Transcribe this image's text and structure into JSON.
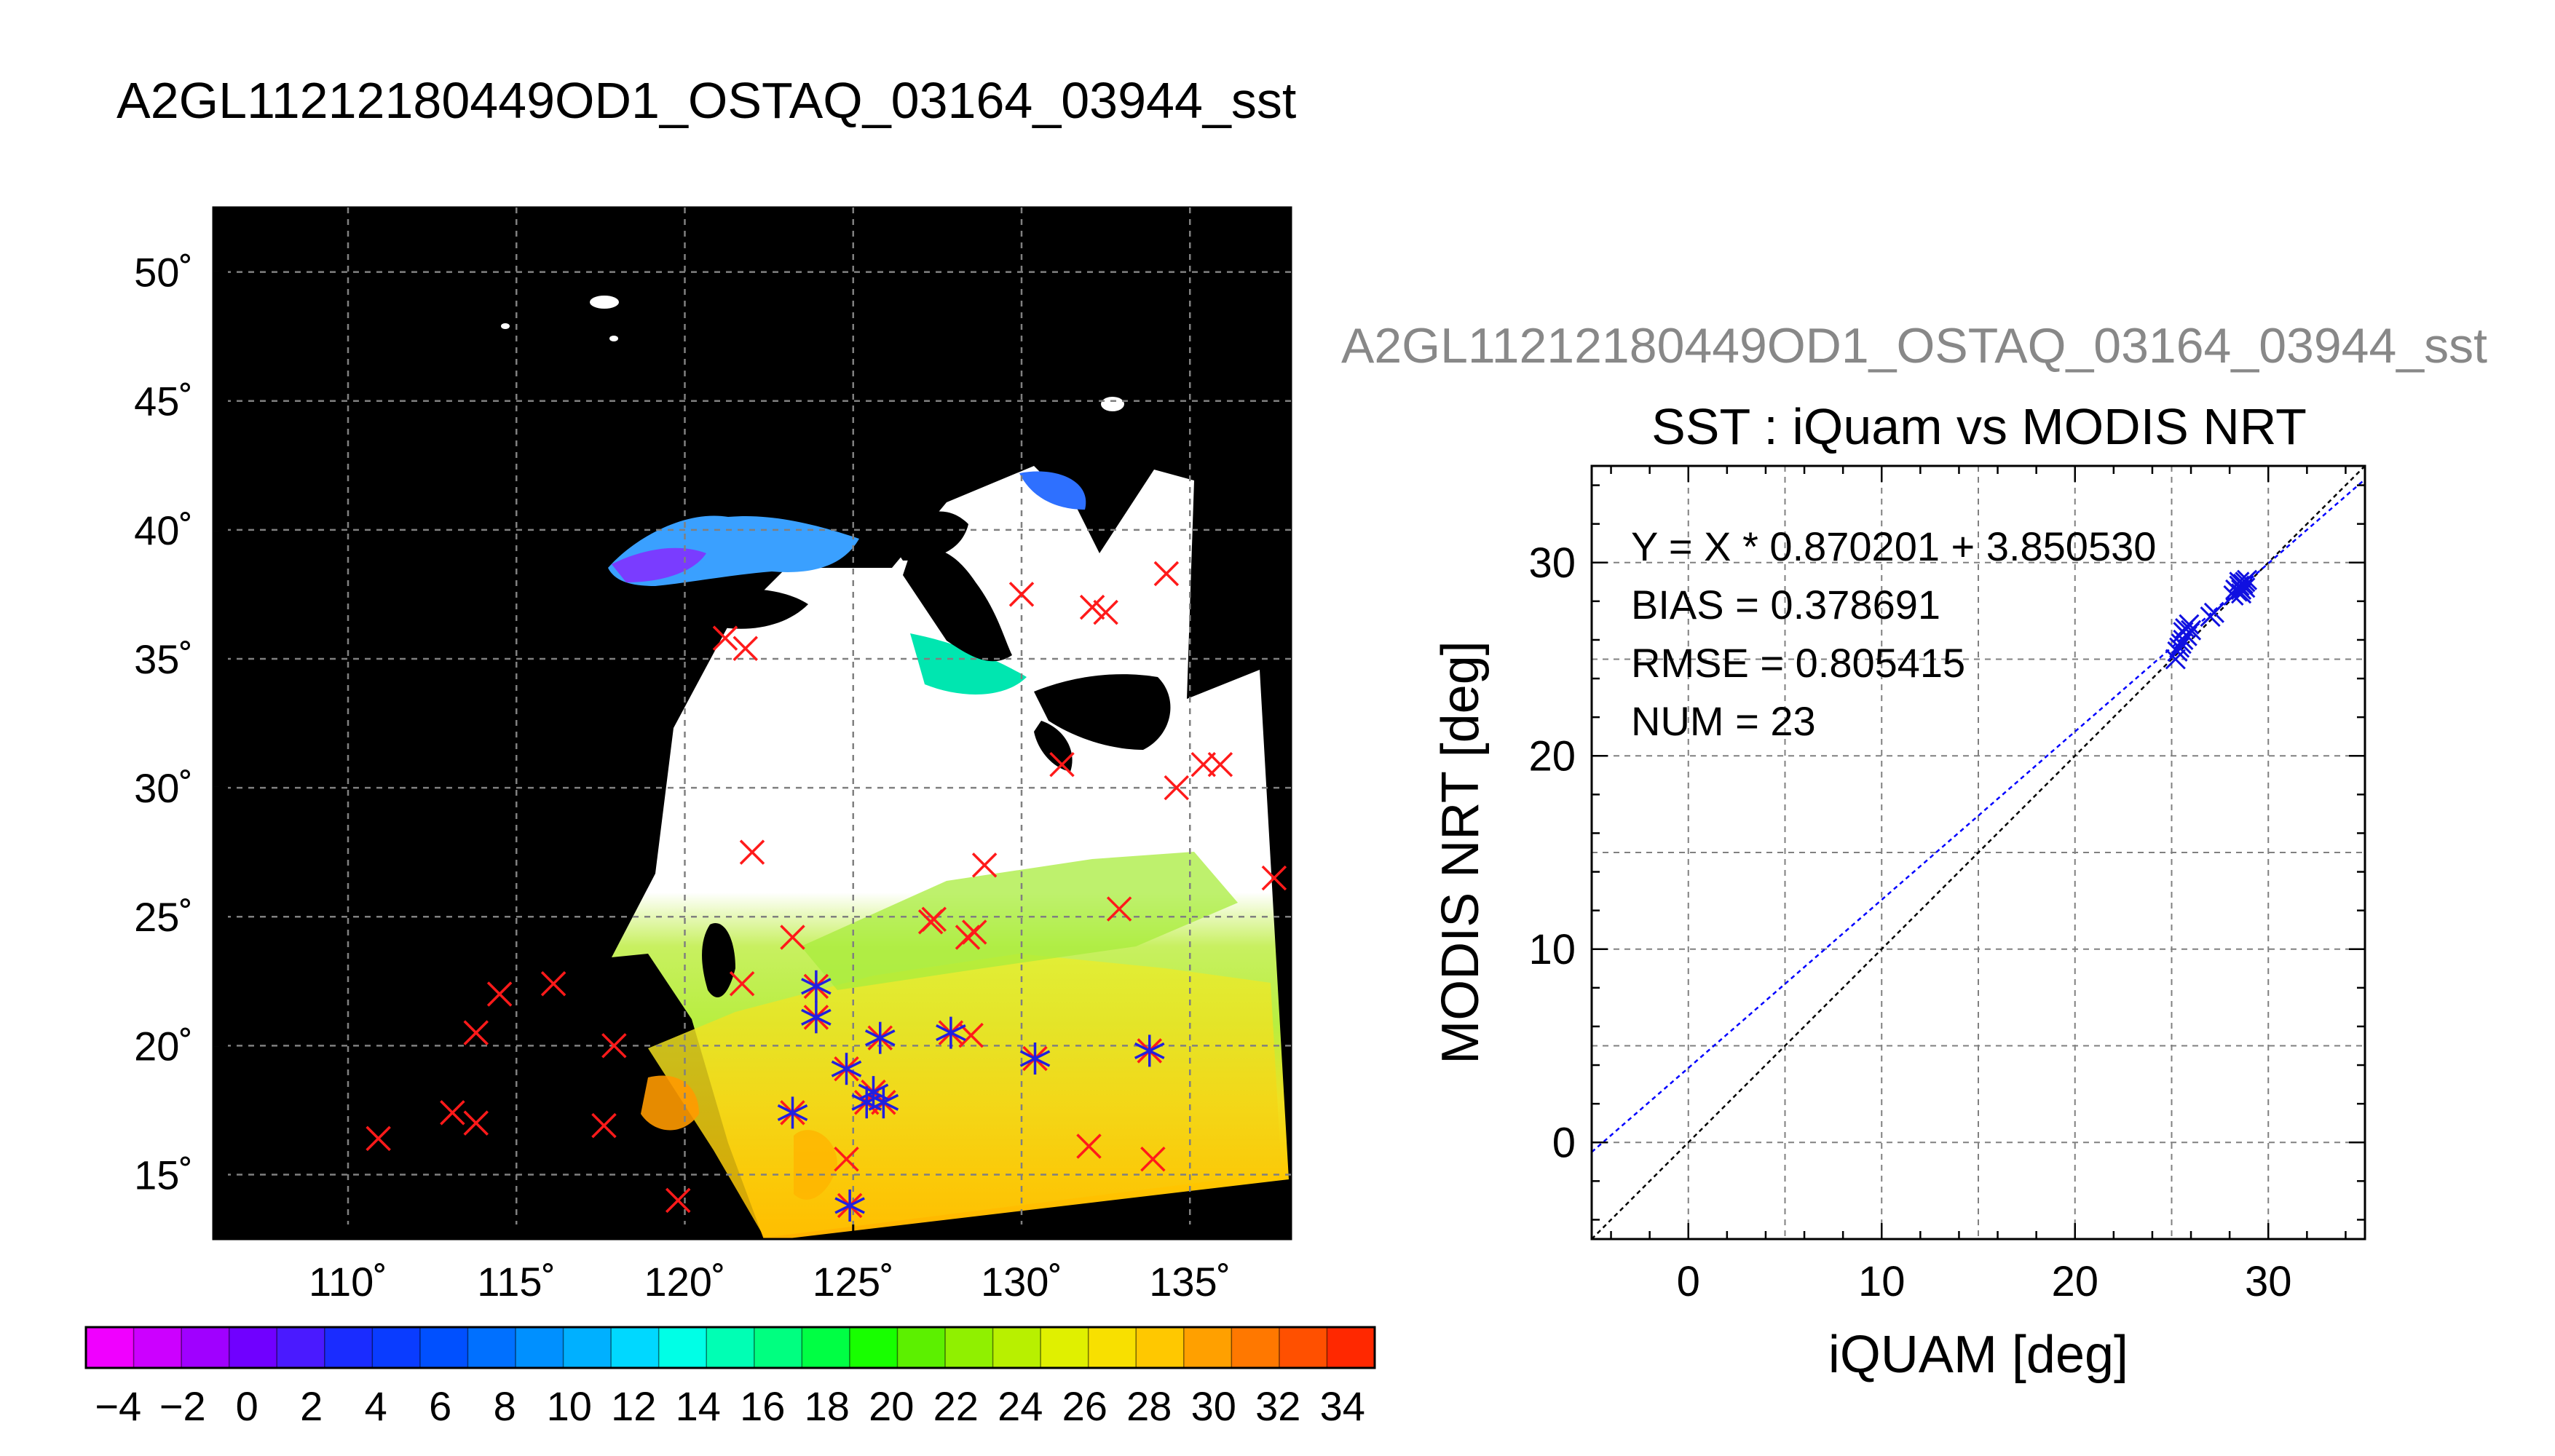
{
  "figure": {
    "main_title": "A2GL11212180449OD1_OSTAQ_03164_03944_sst",
    "scatter_supertitle": "A2GL11212180449OD1_OSTAQ_03164_03944_sst"
  },
  "map": {
    "lon_ticks": [
      "110˚",
      "115˚",
      "120˚",
      "125˚",
      "130˚",
      "135˚"
    ],
    "lat_ticks": [
      "50˚",
      "45˚",
      "40˚",
      "35˚",
      "30˚",
      "25˚",
      "20˚",
      "15˚"
    ],
    "lon_range": [
      106,
      138
    ],
    "lat_range": [
      12.5,
      52.5
    ],
    "matchup_points": [
      [
        134.3,
        38.3
      ],
      [
        132.1,
        37.0
      ],
      [
        132.5,
        36.8
      ],
      [
        130.0,
        37.5
      ],
      [
        121.2,
        35.8
      ],
      [
        121.8,
        35.4
      ],
      [
        131.2,
        30.9
      ],
      [
        134.6,
        30.0
      ],
      [
        135.4,
        30.9
      ],
      [
        135.9,
        30.9
      ],
      [
        122.0,
        27.5
      ],
      [
        137.5,
        26.5
      ],
      [
        128.9,
        27.0
      ],
      [
        127.3,
        24.8
      ],
      [
        127.4,
        24.9
      ],
      [
        128.4,
        24.2
      ],
      [
        128.6,
        24.4
      ],
      [
        123.2,
        24.2
      ],
      [
        132.9,
        25.3
      ],
      [
        116.1,
        22.4
      ],
      [
        114.5,
        22.0
      ],
      [
        121.7,
        22.4
      ],
      [
        123.9,
        22.3
      ],
      [
        123.9,
        21.1
      ],
      [
        113.8,
        20.5
      ],
      [
        117.9,
        20.0
      ],
      [
        125.8,
        20.3
      ],
      [
        127.9,
        20.5
      ],
      [
        128.5,
        20.4
      ],
      [
        124.8,
        19.1
      ],
      [
        130.4,
        19.5
      ],
      [
        133.8,
        19.8
      ],
      [
        125.6,
        18.2
      ],
      [
        125.4,
        17.8
      ],
      [
        125.9,
        17.8
      ],
      [
        123.2,
        17.4
      ],
      [
        113.1,
        17.4
      ],
      [
        113.8,
        17.0
      ],
      [
        117.6,
        16.9
      ],
      [
        110.9,
        16.4
      ],
      [
        132.0,
        16.1
      ],
      [
        124.8,
        15.6
      ],
      [
        133.9,
        15.6
      ],
      [
        119.8,
        14.0
      ],
      [
        124.9,
        13.8
      ]
    ],
    "insitu_points": [
      [
        123.9,
        22.3
      ],
      [
        123.9,
        21.1
      ],
      [
        125.8,
        20.3
      ],
      [
        127.9,
        20.5
      ],
      [
        124.8,
        19.1
      ],
      [
        130.4,
        19.5
      ],
      [
        133.8,
        19.8
      ],
      [
        125.6,
        18.2
      ],
      [
        125.4,
        17.8
      ],
      [
        125.9,
        17.8
      ],
      [
        123.2,
        17.4
      ],
      [
        124.9,
        13.8
      ]
    ]
  },
  "colorbar": {
    "tick_labels": [
      "−4",
      "−2",
      "0",
      "2",
      "4",
      "6",
      "8",
      "10",
      "12",
      "14",
      "16",
      "18",
      "20",
      "22",
      "24",
      "26",
      "28",
      "30",
      "32",
      "34"
    ],
    "range": [
      -5,
      35
    ],
    "colors": [
      "#f000ff",
      "#cc00ff",
      "#a000ff",
      "#7000ff",
      "#4a1aff",
      "#1a2cff",
      "#0a3cff",
      "#0050ff",
      "#0070ff",
      "#0090ff",
      "#00b0ff",
      "#00d8ff",
      "#00ffe6",
      "#00ffb4",
      "#00ff80",
      "#00ff44",
      "#18ff00",
      "#5cf000",
      "#90f000",
      "#b8f000",
      "#e0f000",
      "#f8e000",
      "#ffc800",
      "#ffa000",
      "#ff7800",
      "#ff5000",
      "#ff2800"
    ]
  },
  "chart_data": {
    "type": "scatter",
    "title": "SST : iQuam vs MODIS NRT",
    "xlabel": "iQUAM [deg]",
    "ylabel": "MODIS NRT [deg]",
    "xlim": [
      -5,
      35
    ],
    "ylim": [
      -5,
      35
    ],
    "x_ticks": [
      "0",
      "10",
      "20",
      "30"
    ],
    "y_ticks": [
      "0",
      "10",
      "20",
      "30"
    ],
    "grid": true,
    "stats": [
      "Y = X * 0.870201 + 3.850530",
      "BIAS = 0.378691",
      "RMSE = 0.805415",
      "NUM = 23"
    ],
    "fit": {
      "slope": 0.870201,
      "intercept": 3.85053
    },
    "points": [
      [
        25.2,
        25.0
      ],
      [
        25.3,
        25.4
      ],
      [
        25.4,
        25.6
      ],
      [
        25.5,
        25.8
      ],
      [
        25.6,
        26.0
      ],
      [
        25.6,
        26.4
      ],
      [
        25.7,
        26.6
      ],
      [
        25.8,
        26.2
      ],
      [
        25.9,
        26.8
      ],
      [
        26.0,
        26.5
      ],
      [
        27.0,
        27.2
      ],
      [
        27.2,
        27.4
      ],
      [
        28.2,
        28.3
      ],
      [
        28.4,
        28.5
      ],
      [
        28.5,
        28.8
      ],
      [
        28.6,
        28.6
      ],
      [
        28.7,
        28.9
      ],
      [
        28.8,
        29.0
      ],
      [
        28.3,
        28.6
      ],
      [
        28.9,
        29.1
      ],
      [
        28.6,
        28.4
      ],
      [
        28.8,
        28.7
      ],
      [
        28.5,
        29.0
      ]
    ]
  }
}
